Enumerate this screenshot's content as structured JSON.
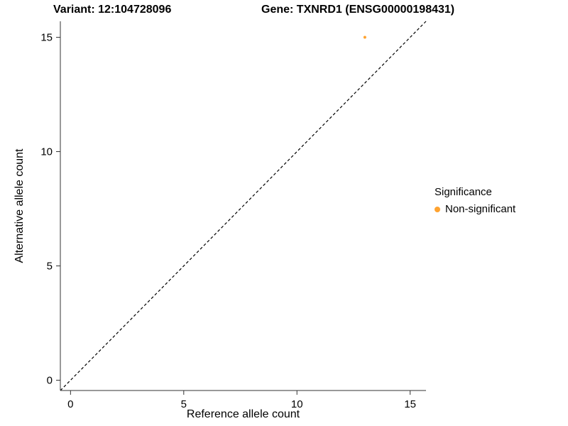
{
  "chart_data": {
    "type": "scatter",
    "title_left": "Variant: 12:104728096",
    "title_right": "Gene: TXNRD1 (ENSG00000198431)",
    "xlabel": "Reference allele count",
    "ylabel": "Alternative allele count",
    "xlim": [
      -0.45,
      15.7
    ],
    "ylim": [
      -0.45,
      15.7
    ],
    "xticks": [
      0,
      5,
      10,
      15
    ],
    "yticks": [
      0,
      5,
      10,
      15
    ],
    "grid": false,
    "points": [
      {
        "x": 13,
        "y": 15,
        "series": "Non-significant"
      }
    ],
    "identity_line": {
      "style": "dashed",
      "color": "#000000",
      "from": [
        -0.45,
        -0.45
      ],
      "to": [
        15.7,
        15.7
      ]
    },
    "legend": {
      "title": "Significance",
      "position": "right",
      "entries": [
        {
          "label": "Non-significant",
          "color": "#FFA330"
        }
      ]
    },
    "axis_color": "#333333",
    "point_radius": 2,
    "legend_dot_radius": 4
  }
}
